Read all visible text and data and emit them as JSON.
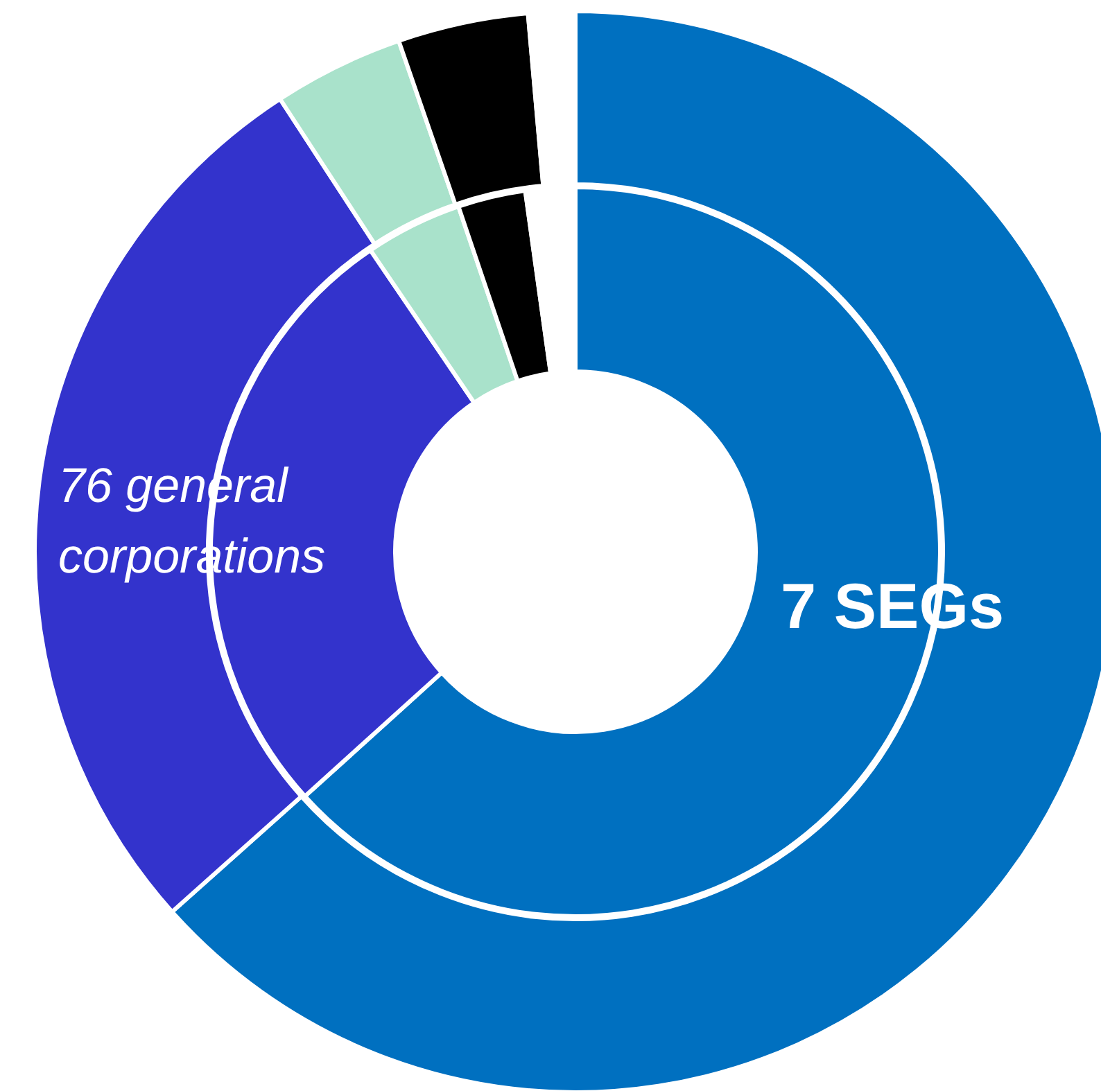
{
  "chart_data": {
    "type": "donut",
    "categories": [
      "7 SEGs",
      "76 general corporations",
      null,
      null,
      null
    ],
    "series": [
      {
        "colors": [
          "#0070c0",
          "#3333cc",
          "#a9e2cb",
          "#000000",
          "#ffffff"
        ],
        "values": [
          63.3,
          27.2,
          4.3,
          3.0,
          2.2
        ]
      },
      {
        "colors": [
          "#0070c0",
          "#3333cc",
          "#a9e2cb",
          "#000000",
          "#ffffff"
        ],
        "values": [
          63.4,
          27.4,
          3.9,
          3.9,
          1.4
        ]
      }
    ]
  }
}
